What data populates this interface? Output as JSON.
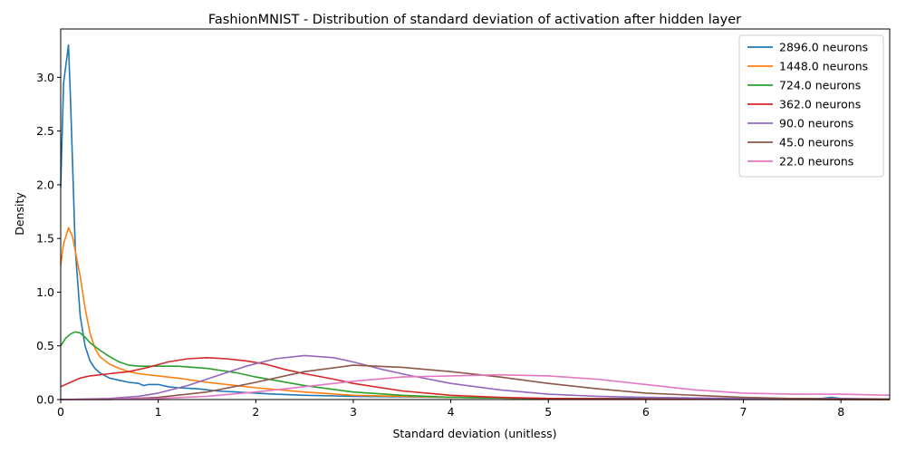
{
  "chart_data": {
    "type": "line",
    "title": "FashionMNIST - Distribution of standard deviation of activation after hidden layer",
    "xlabel": "Standard deviation (unitless)",
    "ylabel": "Density",
    "xlim": [
      0,
      8.5
    ],
    "ylim": [
      0,
      3.45
    ],
    "xticks": [
      0,
      1,
      2,
      3,
      4,
      5,
      6,
      7,
      8
    ],
    "yticks": [
      0.0,
      0.5,
      1.0,
      1.5,
      2.0,
      2.5,
      3.0
    ],
    "grid": false,
    "legend_position": "top-right",
    "series": [
      {
        "name": "2896.0 neurons",
        "color": "#1f77b4",
        "x": [
          0,
          0.03,
          0.08,
          0.1,
          0.15,
          0.2,
          0.25,
          0.3,
          0.35,
          0.4,
          0.5,
          0.6,
          0.7,
          0.8,
          0.85,
          0.9,
          1.0,
          1.1,
          1.2,
          1.4,
          1.6,
          1.8,
          2.0,
          2.2,
          2.5,
          3.0,
          4.0,
          5.0,
          6.0,
          7.0,
          7.8,
          7.9,
          8.0,
          8.5
        ],
        "y": [
          1.98,
          2.95,
          3.3,
          2.8,
          1.4,
          0.78,
          0.5,
          0.36,
          0.29,
          0.25,
          0.2,
          0.18,
          0.16,
          0.15,
          0.13,
          0.14,
          0.14,
          0.12,
          0.11,
          0.1,
          0.08,
          0.07,
          0.06,
          0.05,
          0.04,
          0.03,
          0.02,
          0.01,
          0.01,
          0.01,
          0.01,
          0.02,
          0.01,
          0.0
        ]
      },
      {
        "name": "1448.0 neurons",
        "color": "#ff7f0e",
        "x": [
          0,
          0.03,
          0.08,
          0.12,
          0.2,
          0.25,
          0.3,
          0.35,
          0.4,
          0.5,
          0.6,
          0.7,
          0.8,
          1.0,
          1.2,
          1.5,
          2.0,
          2.5,
          3.0,
          3.5,
          4.0,
          5.0,
          6.0,
          7.0,
          8.0,
          8.5
        ],
        "y": [
          1.25,
          1.45,
          1.6,
          1.52,
          1.15,
          0.85,
          0.62,
          0.48,
          0.4,
          0.33,
          0.29,
          0.26,
          0.24,
          0.22,
          0.2,
          0.16,
          0.11,
          0.07,
          0.04,
          0.03,
          0.02,
          0.01,
          0.005,
          0.003,
          0.002,
          0.001
        ]
      },
      {
        "name": "724.0 neurons",
        "color": "#2ca02c",
        "x": [
          0,
          0.05,
          0.1,
          0.15,
          0.2,
          0.25,
          0.3,
          0.4,
          0.5,
          0.6,
          0.7,
          0.8,
          1.0,
          1.2,
          1.5,
          1.8,
          2.0,
          2.5,
          3.0,
          3.5,
          4.0,
          5.0,
          6.0,
          7.0,
          8.0,
          8.5
        ],
        "y": [
          0.5,
          0.57,
          0.61,
          0.63,
          0.62,
          0.58,
          0.53,
          0.46,
          0.4,
          0.35,
          0.32,
          0.31,
          0.31,
          0.31,
          0.29,
          0.25,
          0.21,
          0.13,
          0.07,
          0.04,
          0.02,
          0.01,
          0.005,
          0.003,
          0.002,
          0.001
        ]
      },
      {
        "name": "362.0 neurons",
        "color": "#d62728",
        "x": [
          0,
          0.1,
          0.2,
          0.3,
          0.5,
          0.7,
          0.9,
          1.1,
          1.3,
          1.5,
          1.7,
          1.9,
          2.1,
          2.3,
          2.5,
          2.8,
          3.0,
          3.5,
          4.0,
          4.5,
          5.0,
          6.0,
          7.0,
          8.0,
          8.5
        ],
        "y": [
          0.12,
          0.16,
          0.2,
          0.22,
          0.24,
          0.26,
          0.3,
          0.35,
          0.38,
          0.39,
          0.38,
          0.36,
          0.33,
          0.28,
          0.24,
          0.19,
          0.15,
          0.08,
          0.04,
          0.02,
          0.01,
          0.004,
          0.002,
          0.001,
          0.0
        ]
      },
      {
        "name": "90.0 neurons",
        "color": "#9467bd",
        "x": [
          0,
          0.5,
          0.8,
          1.0,
          1.3,
          1.6,
          1.9,
          2.2,
          2.5,
          2.8,
          3.0,
          3.3,
          3.6,
          4.0,
          4.5,
          5.0,
          5.5,
          6.0,
          7.0,
          8.0,
          8.5
        ],
        "y": [
          0.0,
          0.01,
          0.03,
          0.06,
          0.13,
          0.22,
          0.31,
          0.38,
          0.41,
          0.39,
          0.35,
          0.28,
          0.22,
          0.15,
          0.09,
          0.05,
          0.03,
          0.02,
          0.01,
          0.01,
          0.005
        ]
      },
      {
        "name": "45.0 neurons",
        "color": "#8c564b",
        "x": [
          0,
          0.5,
          1.0,
          1.5,
          2.0,
          2.5,
          3.0,
          3.5,
          4.0,
          4.5,
          5.0,
          5.5,
          6.0,
          6.5,
          7.0,
          7.5,
          8.0,
          8.5
        ],
        "y": [
          0.0,
          0.0,
          0.02,
          0.07,
          0.16,
          0.26,
          0.32,
          0.3,
          0.26,
          0.21,
          0.15,
          0.1,
          0.06,
          0.04,
          0.02,
          0.01,
          0.005,
          0.003
        ]
      },
      {
        "name": "22.0 neurons",
        "color": "#e377c2",
        "x": [
          0,
          1.0,
          1.5,
          2.0,
          2.5,
          3.0,
          3.5,
          4.0,
          4.5,
          5.0,
          5.5,
          6.0,
          6.5,
          7.0,
          7.5,
          8.0,
          8.5
        ],
        "y": [
          0.0,
          0.01,
          0.03,
          0.07,
          0.12,
          0.17,
          0.21,
          0.22,
          0.23,
          0.22,
          0.19,
          0.14,
          0.09,
          0.06,
          0.05,
          0.05,
          0.04
        ]
      }
    ]
  }
}
